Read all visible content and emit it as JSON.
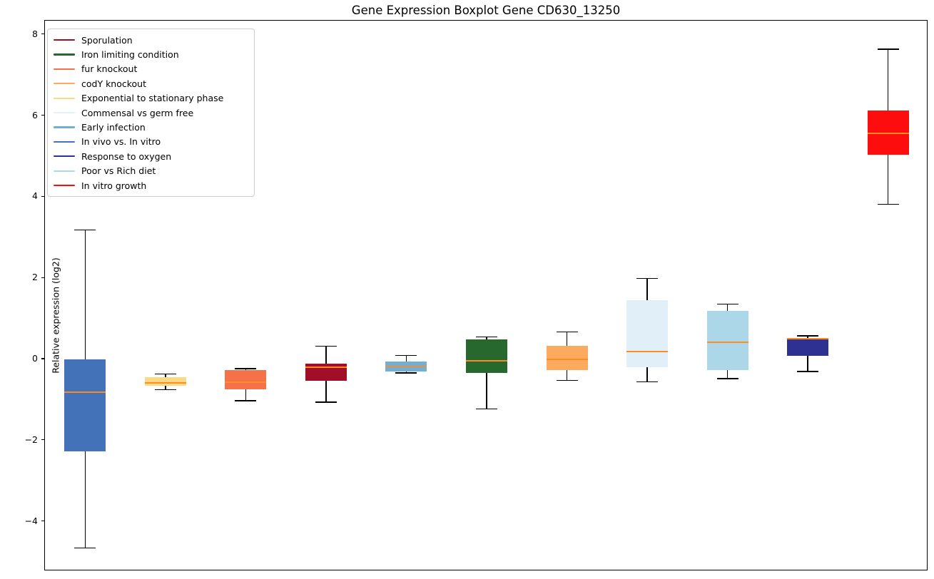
{
  "chart_data": {
    "type": "boxplot",
    "title": "Gene Expression Boxplot Gene CD630_13250",
    "ylabel": "Relative expression (log2)",
    "xlabel": "",
    "ylim": [
      -5.22,
      8.35
    ],
    "yticks": [
      {
        "value": 8,
        "label": "8"
      },
      {
        "value": 6,
        "label": "6"
      },
      {
        "value": 4,
        "label": "4"
      },
      {
        "value": 2,
        "label": "2"
      },
      {
        "value": 0,
        "label": "0"
      },
      {
        "value": -2,
        "label": "−2"
      },
      {
        "value": -4,
        "label": "−4"
      }
    ],
    "grid": false,
    "legend_position": "upper left",
    "median_color": "#fc8d22",
    "whisker_color": "#000000",
    "boxes": [
      {
        "label": "In vivo vs. In vitro",
        "color": "#4472b8",
        "whisker_low": -4.65,
        "q1": -2.26,
        "median": -0.81,
        "q3": 0.0,
        "whisker_high": 3.19
      },
      {
        "label": "Exponential to stationary phase",
        "color": "#fada85",
        "whisker_low": -0.75,
        "q1": -0.65,
        "median": -0.58,
        "q3": -0.44,
        "whisker_high": -0.36
      },
      {
        "label": "fur knockout",
        "color": "#f4714a",
        "whisker_low": -1.02,
        "q1": -0.73,
        "median": -0.56,
        "q3": -0.27,
        "whisker_high": -0.23
      },
      {
        "label": "Sporulation",
        "color": "#a00e28",
        "whisker_low": -1.05,
        "q1": -0.52,
        "median": -0.2,
        "q3": -0.11,
        "whisker_high": 0.33
      },
      {
        "label": "Early infection",
        "color": "#70b0d8",
        "whisker_low": -0.33,
        "q1": -0.3,
        "median": -0.18,
        "q3": -0.06,
        "whisker_high": 0.1
      },
      {
        "label": "Iron limiting condition",
        "color": "#27682f",
        "whisker_low": -1.22,
        "q1": -0.34,
        "median": -0.04,
        "q3": 0.49,
        "whisker_high": 0.55
      },
      {
        "label": "codY knockout",
        "color": "#fbaa60",
        "whisker_low": -0.52,
        "q1": -0.26,
        "median": 0.0,
        "q3": 0.34,
        "whisker_high": 0.68
      },
      {
        "label": "Commensal vs germ free",
        "color": "#e0eff8",
        "whisker_low": -0.55,
        "q1": -0.2,
        "median": 0.19,
        "q3": 1.46,
        "whisker_high": 2.0
      },
      {
        "label": "Poor vs Rich diet",
        "color": "#abd7e8",
        "whisker_low": -0.47,
        "q1": -0.26,
        "median": 0.43,
        "q3": 1.19,
        "whisker_high": 1.36
      },
      {
        "label": "Response to oxygen",
        "color": "#2e3192",
        "whisker_low": -0.3,
        "q1": 0.09,
        "median": 0.51,
        "q3": 0.52,
        "whisker_high": 0.58
      },
      {
        "label": "In vitro growth",
        "color": "#fd0d0e",
        "whisker_low": 3.82,
        "q1": 5.04,
        "median": 5.58,
        "q3": 6.14,
        "whisker_high": 7.65
      }
    ],
    "legend_order": [
      "Sporulation",
      "Iron limiting condition",
      "fur knockout",
      "codY knockout",
      "Exponential to stationary phase",
      "Commensal vs germ free",
      "Early infection",
      "In vivo vs. In vitro",
      "Response to oxygen",
      "Poor vs Rich diet",
      "In vitro growth"
    ]
  }
}
